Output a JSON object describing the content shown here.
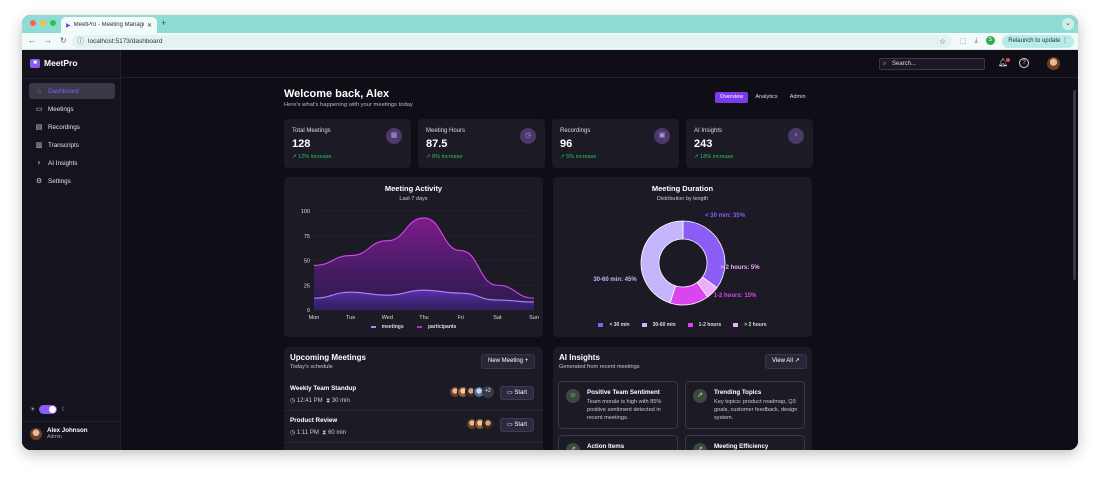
{
  "browser": {
    "tab_title": "MeetPro - Meeting Managem...",
    "url": "localhost:5173/dashboard",
    "relaunch_label": "Relaunch to update",
    "profile_initial": "S"
  },
  "app": {
    "brand": "MeetPro",
    "sidebar": {
      "items": [
        {
          "label": "Dashboard",
          "icon": "home-icon",
          "active": true
        },
        {
          "label": "Meetings",
          "icon": "video-icon"
        },
        {
          "label": "Recordings",
          "icon": "film-icon"
        },
        {
          "label": "Transcripts",
          "icon": "document-icon"
        },
        {
          "label": "AI Insights",
          "icon": "lightbulb-icon"
        },
        {
          "label": "Settings",
          "icon": "gear-icon"
        }
      ],
      "user": {
        "name": "Alex Johnson",
        "role": "Admin"
      }
    },
    "header": {
      "search_placeholder": "Search..."
    },
    "welcome": "Welcome back, Alex",
    "welcome_sub": "Here's what's happening with your meetings today",
    "views": [
      "Overview",
      "Analytics",
      "Admin"
    ],
    "stats": [
      {
        "label": "Total Meetings",
        "value": "128",
        "change": "12% increase",
        "icon": "calendar-icon"
      },
      {
        "label": "Meeting Hours",
        "value": "87.5",
        "change": "8% increase",
        "icon": "clock-icon"
      },
      {
        "label": "Recordings",
        "value": "96",
        "change": "5% increase",
        "icon": "recording-icon"
      },
      {
        "label": "AI Insights",
        "value": "243",
        "change": "18% increase",
        "icon": "lightbulb-icon"
      }
    ],
    "upcoming": {
      "title": "Upcoming Meetings",
      "sub": "Today's schedule",
      "new_button": "New Meeting",
      "start_label": "Start",
      "more_count": "+2",
      "meetings": [
        {
          "title": "Weekly Team Standup",
          "time": "12:41 PM",
          "duration": "30 min"
        },
        {
          "title": "Product Review",
          "time": "1:11 PM",
          "duration": "60 min"
        }
      ]
    },
    "ai": {
      "title": "AI Insights",
      "sub": "Generated from recent meetings",
      "view_all": "View All",
      "cards": [
        {
          "title": "Positive Team Sentiment",
          "body": "Team morale is high with 85% positive sentiment detected in recent meetings."
        },
        {
          "title": "Trending Topics",
          "body": "Key topics: product roadmap, Q3 goals, customer feedback, design system."
        },
        {
          "title": "Action Items",
          "body": ""
        },
        {
          "title": "Meeting Efficiency",
          "body": ""
        }
      ]
    }
  },
  "chart_data": [
    {
      "type": "area",
      "title": "Meeting Activity",
      "subtitle": "Last 7 days",
      "categories": [
        "Mon",
        "Tue",
        "Wed",
        "Thu",
        "Fri",
        "Sat",
        "Sun"
      ],
      "ylim": [
        0,
        100
      ],
      "yticks": [
        0,
        25,
        50,
        75,
        100
      ],
      "grid": true,
      "legend": "bottom",
      "series": [
        {
          "name": "meetings",
          "values": [
            12,
            18,
            15,
            20,
            17,
            10,
            8
          ],
          "color": "#a78bfa"
        },
        {
          "name": "participants",
          "values": [
            45,
            55,
            70,
            93,
            60,
            25,
            12
          ],
          "color": "#c026d3"
        }
      ]
    },
    {
      "type": "pie",
      "title": "Meeting Duration",
      "subtitle": "Distribution by length",
      "legend": "bottom",
      "slices": [
        {
          "label": "< 30 min",
          "value": 35,
          "color": "#8b5cf6",
          "annotation": "< 30 min: 35%"
        },
        {
          "label": "> 2 hours",
          "value": 5,
          "color": "#f0abfc",
          "annotation": "> 2 hours: 5%"
        },
        {
          "label": "1-2 hours",
          "value": 15,
          "color": "#d946ef",
          "annotation": "1-2 hours: 15%"
        },
        {
          "label": "30-60 min",
          "value": 45,
          "color": "#c4b5fd",
          "annotation": "30-60 min: 45%"
        }
      ],
      "legend_order": [
        "< 30 min",
        "30-60 min",
        "1-2 hours",
        "> 2 hours"
      ]
    }
  ]
}
